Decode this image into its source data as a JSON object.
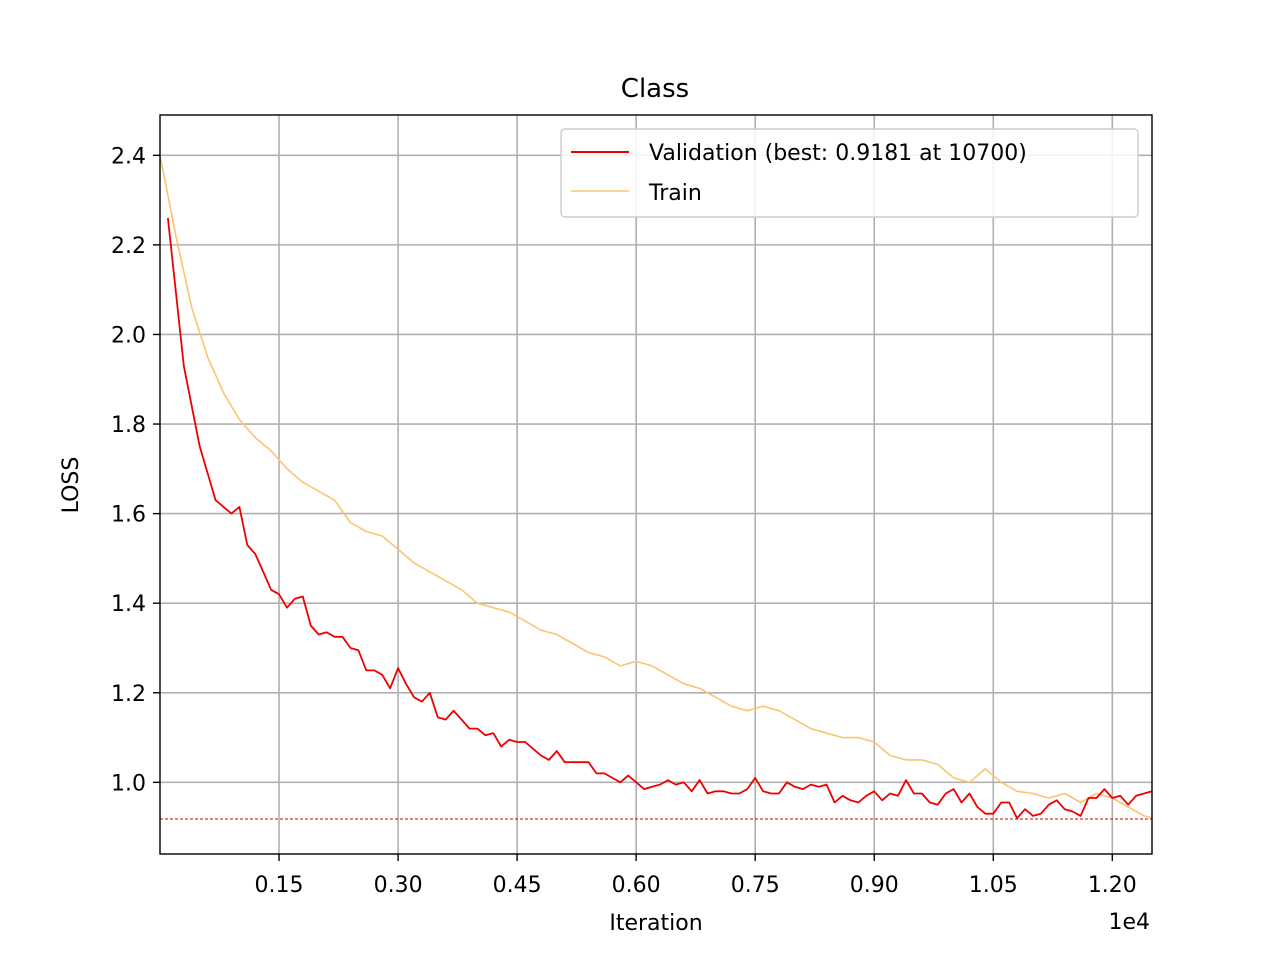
{
  "chart_data": {
    "type": "line",
    "title": "Class",
    "xlabel": "Iteration",
    "ylabel": "LOSS",
    "x_offset_label": "1e4",
    "xlim": [
      0,
      12500
    ],
    "ylim": [
      0.84,
      2.49
    ],
    "grid": true,
    "legend_position": "top-right",
    "x_ticks": [
      {
        "value": 1500,
        "label": "0.15"
      },
      {
        "value": 3000,
        "label": "0.30"
      },
      {
        "value": 4500,
        "label": "0.45"
      },
      {
        "value": 6000,
        "label": "0.60"
      },
      {
        "value": 7500,
        "label": "0.75"
      },
      {
        "value": 9000,
        "label": "0.90"
      },
      {
        "value": 10500,
        "label": "1.05"
      },
      {
        "value": 12000,
        "label": "1.20"
      }
    ],
    "y_ticks": [
      {
        "value": 1.0,
        "label": "1.0"
      },
      {
        "value": 1.2,
        "label": "1.2"
      },
      {
        "value": 1.4,
        "label": "1.4"
      },
      {
        "value": 1.6,
        "label": "1.6"
      },
      {
        "value": 1.8,
        "label": "1.8"
      },
      {
        "value": 2.0,
        "label": "2.0"
      },
      {
        "value": 2.2,
        "label": "2.2"
      },
      {
        "value": 2.4,
        "label": "2.4"
      }
    ],
    "best_line": {
      "y": 0.9181,
      "color": "#cc0000"
    },
    "series": [
      {
        "name": "Validation (best: 0.9181 at 10700)",
        "color": "#ee0000",
        "x": [
          100,
          300,
          500,
          700,
          900,
          1000,
          1100,
          1200,
          1300,
          1400,
          1500,
          1600,
          1700,
          1800,
          1900,
          2000,
          2100,
          2200,
          2300,
          2400,
          2500,
          2600,
          2700,
          2800,
          2900,
          3000,
          3100,
          3200,
          3300,
          3400,
          3500,
          3600,
          3700,
          3800,
          3900,
          4000,
          4100,
          4200,
          4300,
          4400,
          4500,
          4600,
          4700,
          4800,
          4900,
          5000,
          5100,
          5200,
          5300,
          5400,
          5500,
          5600,
          5700,
          5800,
          5900,
          6000,
          6100,
          6200,
          6300,
          6400,
          6500,
          6600,
          6700,
          6800,
          6900,
          7000,
          7100,
          7200,
          7300,
          7400,
          7500,
          7600,
          7700,
          7800,
          7900,
          8000,
          8100,
          8200,
          8300,
          8400,
          8500,
          8600,
          8700,
          8800,
          8900,
          9000,
          9100,
          9200,
          9300,
          9400,
          9500,
          9600,
          9700,
          9800,
          9900,
          10000,
          10100,
          10200,
          10300,
          10400,
          10500,
          10600,
          10700,
          10800,
          10900,
          11000,
          11100,
          11200,
          11300,
          11400,
          11500,
          11600,
          11700,
          11800,
          11900,
          12000,
          12100,
          12200,
          12300,
          12500
        ],
        "y": [
          2.26,
          1.93,
          1.75,
          1.63,
          1.6,
          1.615,
          1.53,
          1.51,
          1.47,
          1.43,
          1.42,
          1.39,
          1.41,
          1.415,
          1.35,
          1.33,
          1.335,
          1.325,
          1.325,
          1.3,
          1.295,
          1.25,
          1.25,
          1.24,
          1.21,
          1.255,
          1.22,
          1.19,
          1.18,
          1.2,
          1.145,
          1.14,
          1.16,
          1.14,
          1.12,
          1.12,
          1.105,
          1.11,
          1.08,
          1.095,
          1.09,
          1.09,
          1.075,
          1.06,
          1.05,
          1.07,
          1.045,
          1.045,
          1.045,
          1.045,
          1.02,
          1.02,
          1.01,
          1.0,
          1.015,
          1.0,
          0.985,
          0.99,
          0.995,
          1.005,
          0.995,
          1.0,
          0.98,
          1.005,
          0.975,
          0.98,
          0.98,
          0.975,
          0.975,
          0.985,
          1.01,
          0.98,
          0.975,
          0.975,
          1.0,
          0.99,
          0.985,
          0.995,
          0.99,
          0.995,
          0.955,
          0.97,
          0.96,
          0.955,
          0.97,
          0.98,
          0.96,
          0.975,
          0.97,
          1.005,
          0.975,
          0.975,
          0.955,
          0.95,
          0.975,
          0.985,
          0.955,
          0.975,
          0.945,
          0.93,
          0.93,
          0.955,
          0.955,
          0.92,
          0.94,
          0.925,
          0.93,
          0.95,
          0.96,
          0.94,
          0.935,
          0.925,
          0.965,
          0.965,
          0.985,
          0.965,
          0.97,
          0.95,
          0.97,
          0.98
        ]
      },
      {
        "name": "Train",
        "color": "#f9c56f",
        "x": [
          0,
          200,
          400,
          600,
          800,
          1000,
          1200,
          1400,
          1600,
          1800,
          2000,
          2200,
          2400,
          2600,
          2800,
          3000,
          3200,
          3400,
          3600,
          3800,
          4000,
          4200,
          4400,
          4600,
          4800,
          5000,
          5200,
          5400,
          5600,
          5800,
          6000,
          6200,
          6400,
          6600,
          6800,
          7000,
          7200,
          7400,
          7600,
          7800,
          8000,
          8200,
          8400,
          8600,
          8800,
          9000,
          9200,
          9400,
          9600,
          9800,
          10000,
          10200,
          10400,
          10600,
          10800,
          11000,
          11200,
          11400,
          11600,
          11800,
          12000,
          12200,
          12400,
          12500
        ],
        "y": [
          2.4,
          2.22,
          2.06,
          1.95,
          1.87,
          1.81,
          1.77,
          1.74,
          1.7,
          1.67,
          1.65,
          1.63,
          1.58,
          1.56,
          1.55,
          1.52,
          1.49,
          1.47,
          1.45,
          1.43,
          1.4,
          1.39,
          1.38,
          1.36,
          1.34,
          1.33,
          1.31,
          1.29,
          1.28,
          1.26,
          1.27,
          1.26,
          1.24,
          1.22,
          1.21,
          1.19,
          1.17,
          1.16,
          1.17,
          1.16,
          1.14,
          1.12,
          1.11,
          1.1,
          1.1,
          1.09,
          1.06,
          1.05,
          1.05,
          1.04,
          1.01,
          1.0,
          1.03,
          1.0,
          0.98,
          0.975,
          0.965,
          0.975,
          0.955,
          0.975,
          0.965,
          0.945,
          0.925,
          0.92
        ]
      }
    ]
  }
}
